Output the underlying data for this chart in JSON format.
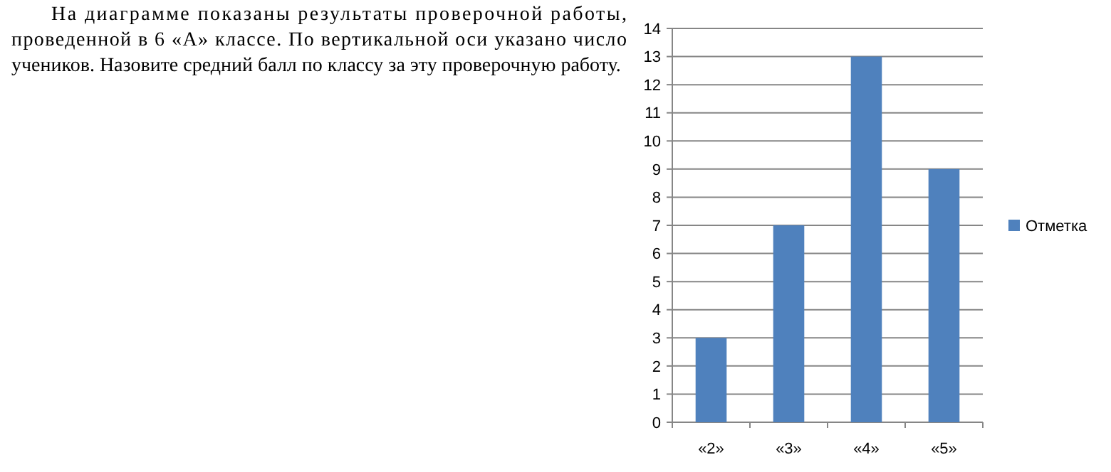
{
  "chart_data": {
    "type": "bar",
    "categories": [
      "«2»",
      "«3»",
      "«4»",
      "«5»"
    ],
    "series": [
      {
        "name": "Отметка",
        "color": "#4f81bd",
        "values": [
          3,
          7,
          13,
          9
        ]
      }
    ],
    "ylim": [
      0,
      14
    ],
    "yticks": [
      0,
      1,
      2,
      3,
      4,
      5,
      6,
      7,
      8,
      9,
      10,
      11,
      12,
      13,
      14
    ],
    "grid": "y",
    "legend": "right",
    "annotations": [
      "На диаграмме показаны результаты проверочной работы, проведенной в 6 «А» классе. По вертикальной оси указано число учеников. Назовите средний балл по классу за эту проверочную работу."
    ]
  }
}
